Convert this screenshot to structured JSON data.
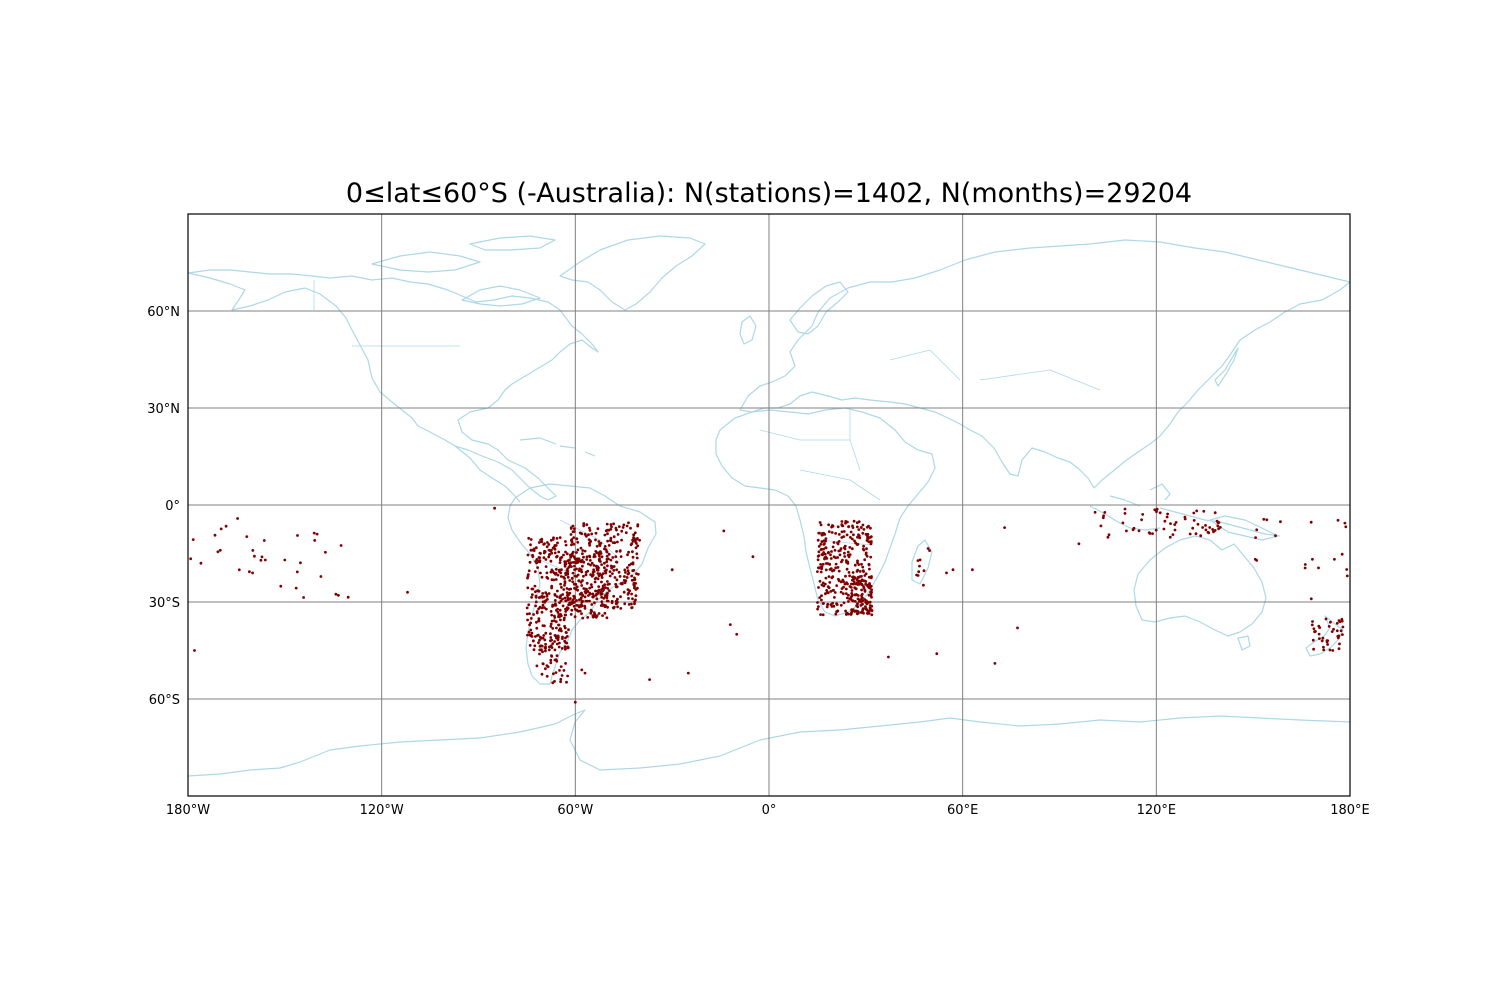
{
  "title": "0≤lat≤60°S (-Australia): N(stations)=1402, N(months)=29204",
  "map": {
    "projection": "plate-carree",
    "extent": {
      "lon": [
        -180,
        180
      ],
      "lat": [
        -90,
        90
      ]
    },
    "coastline_color": "#add8e6",
    "gridline_color": "#808080",
    "station_color": "#7f0000",
    "x_ticks": [
      {
        "value": -180,
        "label": "180°W"
      },
      {
        "value": -120,
        "label": "120°W"
      },
      {
        "value": -60,
        "label": "60°W"
      },
      {
        "value": 0,
        "label": "0°"
      },
      {
        "value": 60,
        "label": "60°E"
      },
      {
        "value": 120,
        "label": "120°E"
      },
      {
        "value": 180,
        "label": "180°E"
      }
    ],
    "y_ticks": [
      {
        "value": 60,
        "label": "60°N"
      },
      {
        "value": 30,
        "label": "30°N"
      },
      {
        "value": 0,
        "label": "0°"
      },
      {
        "value": -30,
        "label": "30°S"
      },
      {
        "value": -60,
        "label": "60°S"
      }
    ],
    "station_regions": [
      {
        "name": "south-america-west",
        "lon": [
          -75,
          -62
        ],
        "lat": [
          -45,
          -10
        ],
        "count": 260
      },
      {
        "name": "south-america-south",
        "lon": [
          -72,
          -62
        ],
        "lat": [
          -55,
          -38
        ],
        "count": 60
      },
      {
        "name": "south-america-east",
        "lon": [
          -62,
          -40
        ],
        "lat": [
          -32,
          -5
        ],
        "count": 330
      },
      {
        "name": "south-america-central",
        "lon": [
          -65,
          -50
        ],
        "lat": [
          -35,
          -15
        ],
        "count": 160
      },
      {
        "name": "africa-south",
        "lon": [
          15,
          32
        ],
        "lat": [
          -34,
          -5
        ],
        "count": 300
      },
      {
        "name": "africa-southeast",
        "lon": [
          25,
          32
        ],
        "lat": [
          -34,
          -22
        ],
        "count": 90
      },
      {
        "name": "indonesia",
        "lon": [
          100,
          140
        ],
        "lat": [
          -10,
          -1
        ],
        "count": 60
      },
      {
        "name": "new-zealand",
        "lon": [
          168,
          178
        ],
        "lat": [
          -46,
          -35
        ],
        "count": 40
      },
      {
        "name": "madagascar",
        "lon": [
          44,
          50
        ],
        "lat": [
          -25,
          -13
        ],
        "count": 10
      },
      {
        "name": "south-pacific",
        "lon": [
          -180,
          -130
        ],
        "lat": [
          -30,
          -3
        ],
        "count": 30
      },
      {
        "name": "south-west-pacific",
        "lon": [
          150,
          180
        ],
        "lat": [
          -22,
          -3
        ],
        "count": 20
      }
    ],
    "isolated_stations": [
      [
        -178,
        -45
      ],
      [
        -112,
        -27
      ],
      [
        -85,
        -1
      ],
      [
        -30,
        -20
      ],
      [
        -14,
        -8
      ],
      [
        -12,
        -37
      ],
      [
        -10,
        -40
      ],
      [
        -5,
        -16
      ],
      [
        -57,
        -52
      ],
      [
        -58,
        -51
      ],
      [
        -67,
        -55
      ],
      [
        -37,
        -54
      ],
      [
        -60,
        -61
      ],
      [
        -25,
        -52
      ],
      [
        37,
        -47
      ],
      [
        52,
        -46
      ],
      [
        55,
        -21
      ],
      [
        57,
        -20
      ],
      [
        63,
        -20
      ],
      [
        70,
        -49
      ],
      [
        73,
        -7
      ],
      [
        77,
        -38
      ],
      [
        96,
        -12
      ],
      [
        105,
        -10
      ],
      [
        168,
        -29
      ],
      [
        -140,
        -9
      ],
      [
        -150,
        -17
      ],
      [
        -160,
        -21
      ],
      [
        -170,
        -14
      ],
      [
        -176,
        -18
      ]
    ]
  }
}
